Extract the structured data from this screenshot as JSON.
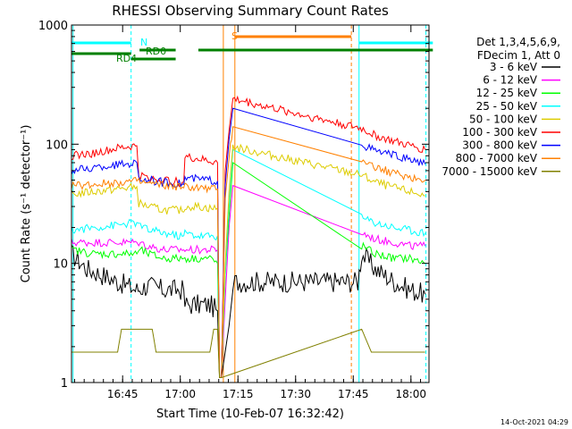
{
  "chart_data": {
    "type": "line",
    "title": "RHESSI Observing Summary Count Rates",
    "xlabel": "Start Time (10-Feb-07 16:32:42)",
    "ylabel": "Count Rate (s⁻¹ detector⁻¹)",
    "yscale": "log",
    "ylim": [
      1,
      1000
    ],
    "xlim_minutes": [
      0,
      93
    ],
    "x_ticks": [
      {
        "minutes": 13.3,
        "label": "16:45"
      },
      {
        "minutes": 28.3,
        "label": "17:00"
      },
      {
        "minutes": 43.3,
        "label": "17:15"
      },
      {
        "minutes": 58.3,
        "label": "17:30"
      },
      {
        "minutes": 73.3,
        "label": "17:45"
      },
      {
        "minutes": 88.3,
        "label": "18:00"
      }
    ],
    "y_ticks": [
      {
        "value": 1,
        "label": "1"
      },
      {
        "value": 10,
        "label": "10"
      },
      {
        "value": 100,
        "label": "100"
      },
      {
        "value": 1000,
        "label": "1000"
      }
    ],
    "legend_header": [
      "Det 1,3,4,5,6,9,",
      "FDecim 1, Att 0"
    ],
    "series": [
      {
        "name": "3 - 6 keV",
        "color": "#000000",
        "pts": [
          [
            0,
            12
          ],
          [
            4,
            9
          ],
          [
            8,
            8
          ],
          [
            12,
            7
          ],
          [
            17,
            6
          ],
          [
            20,
            6.5
          ],
          [
            24,
            6
          ],
          [
            28,
            6
          ],
          [
            29.2,
            6
          ],
          [
            29.5,
            4.5
          ],
          [
            32,
            4.5
          ],
          [
            36,
            4.5
          ],
          [
            38,
            4
          ],
          [
            38.5,
            1.1
          ],
          [
            39,
            1.1
          ],
          [
            41,
            3
          ],
          [
            42,
            6
          ],
          [
            42.5,
            7
          ],
          [
            53,
            7
          ],
          [
            74.5,
            7
          ],
          [
            75.5,
            12
          ],
          [
            79,
            9
          ],
          [
            84,
            7
          ],
          [
            88,
            6
          ],
          [
            92,
            5.5
          ]
        ]
      },
      {
        "name": "6 - 12 keV",
        "color": "#ff00ff",
        "pts": [
          [
            0,
            15
          ],
          [
            6,
            15
          ],
          [
            12,
            15
          ],
          [
            17,
            15
          ],
          [
            17.5,
            15
          ],
          [
            20,
            14
          ],
          [
            24,
            13
          ],
          [
            28,
            13
          ],
          [
            29.2,
            13
          ],
          [
            29.5,
            13
          ],
          [
            33,
            13
          ],
          [
            36,
            13
          ],
          [
            38,
            13
          ],
          [
            38.5,
            1.1
          ],
          [
            39,
            1.1
          ],
          [
            40,
            5
          ],
          [
            41,
            20
          ],
          [
            42,
            45
          ],
          [
            75.5,
            18
          ],
          [
            79,
            16
          ],
          [
            84,
            15
          ],
          [
            88,
            14
          ],
          [
            92,
            14
          ]
        ]
      },
      {
        "name": "12 - 25 keV",
        "color": "#00ff00",
        "pts": [
          [
            0,
            13
          ],
          [
            6,
            12
          ],
          [
            12,
            12
          ],
          [
            17,
            12
          ],
          [
            17.5,
            13
          ],
          [
            20,
            12
          ],
          [
            24,
            11
          ],
          [
            28,
            11
          ],
          [
            29.2,
            11
          ],
          [
            29.5,
            11
          ],
          [
            33,
            11
          ],
          [
            36,
            11
          ],
          [
            38,
            10
          ],
          [
            38.5,
            1.1
          ],
          [
            39,
            1.1
          ],
          [
            40,
            8
          ],
          [
            41,
            25
          ],
          [
            42,
            70
          ],
          [
            75.5,
            14
          ],
          [
            79,
            12
          ],
          [
            84,
            11
          ],
          [
            88,
            11
          ],
          [
            92,
            10
          ]
        ]
      },
      {
        "name": "25 - 50 keV",
        "color": "#00ffff",
        "pts": [
          [
            0,
            19
          ],
          [
            6,
            20
          ],
          [
            12,
            21
          ],
          [
            17,
            22
          ],
          [
            17.5,
            21
          ],
          [
            20,
            19
          ],
          [
            24,
            18
          ],
          [
            28,
            17
          ],
          [
            29.2,
            17
          ],
          [
            29.5,
            18
          ],
          [
            33,
            17
          ],
          [
            36,
            17
          ],
          [
            38,
            17
          ],
          [
            38.5,
            1.1
          ],
          [
            39,
            1.1
          ],
          [
            40,
            8
          ],
          [
            41,
            35
          ],
          [
            42,
            90
          ],
          [
            75.5,
            24
          ],
          [
            79,
            22
          ],
          [
            84,
            20
          ],
          [
            88,
            19
          ],
          [
            92,
            18
          ]
        ]
      },
      {
        "name": "50 - 100 keV",
        "color": "#ddcc00",
        "pts": [
          [
            0,
            38
          ],
          [
            6,
            40
          ],
          [
            12,
            42
          ],
          [
            17,
            44
          ],
          [
            17.5,
            32
          ],
          [
            20,
            30
          ],
          [
            24,
            28
          ],
          [
            28,
            28
          ],
          [
            29.2,
            27
          ],
          [
            29.5,
            30
          ],
          [
            33,
            30
          ],
          [
            36,
            29
          ],
          [
            38,
            29
          ],
          [
            38.5,
            1.1
          ],
          [
            39,
            1.1
          ],
          [
            40,
            10
          ],
          [
            41,
            40
          ],
          [
            42,
            95
          ],
          [
            75.5,
            55
          ],
          [
            79,
            48
          ],
          [
            84,
            43
          ],
          [
            88,
            40
          ],
          [
            92,
            37
          ]
        ]
      },
      {
        "name": "100 - 300 keV",
        "color": "#ff0000",
        "pts": [
          [
            0,
            80
          ],
          [
            6,
            84
          ],
          [
            12,
            92
          ],
          [
            17,
            97
          ],
          [
            17.5,
            55
          ],
          [
            20,
            52
          ],
          [
            24,
            50
          ],
          [
            28,
            48
          ],
          [
            29.2,
            48
          ],
          [
            29.5,
            78
          ],
          [
            33,
            75
          ],
          [
            36,
            72
          ],
          [
            38,
            70
          ],
          [
            38.5,
            1.1
          ],
          [
            39,
            1.1
          ],
          [
            40,
            60
          ],
          [
            41,
            130
          ],
          [
            42,
            240
          ],
          [
            75.5,
            135
          ],
          [
            79,
            118
          ],
          [
            84,
            105
          ],
          [
            88,
            97
          ],
          [
            92,
            90
          ]
        ]
      },
      {
        "name": "300 - 800 keV",
        "color": "#0000ff",
        "pts": [
          [
            0,
            60
          ],
          [
            6,
            63
          ],
          [
            12,
            67
          ],
          [
            17,
            70
          ],
          [
            17.5,
            52
          ],
          [
            20,
            50
          ],
          [
            24,
            48
          ],
          [
            28,
            47
          ],
          [
            29.2,
            46
          ],
          [
            29.5,
            52
          ],
          [
            33,
            51
          ],
          [
            36,
            50
          ],
          [
            38,
            49
          ],
          [
            38.5,
            1.1
          ],
          [
            39,
            1.1
          ],
          [
            40,
            45
          ],
          [
            41,
            110
          ],
          [
            42,
            200
          ],
          [
            75.5,
            100
          ],
          [
            79,
            88
          ],
          [
            84,
            80
          ],
          [
            88,
            74
          ],
          [
            92,
            68
          ]
        ]
      },
      {
        "name": "800 - 7000 keV",
        "color": "#ff8000",
        "pts": [
          [
            0,
            45
          ],
          [
            6,
            46
          ],
          [
            12,
            48
          ],
          [
            17,
            49
          ],
          [
            17.5,
            48
          ],
          [
            20,
            47
          ],
          [
            24,
            45
          ],
          [
            28,
            44
          ],
          [
            29.2,
            43
          ],
          [
            29.5,
            44
          ],
          [
            33,
            43
          ],
          [
            36,
            42
          ],
          [
            38,
            42
          ],
          [
            38.5,
            1.1
          ],
          [
            39,
            1.1
          ],
          [
            40,
            35
          ],
          [
            41,
            80
          ],
          [
            42,
            140
          ],
          [
            75.5,
            75
          ],
          [
            79,
            64
          ],
          [
            84,
            57
          ],
          [
            88,
            53
          ],
          [
            92,
            50
          ]
        ]
      },
      {
        "name": "7000 - 15000 keV",
        "color": "#808000",
        "pts": [
          [
            0,
            1.8
          ],
          [
            5,
            1.8
          ],
          [
            10,
            1.8
          ],
          [
            12,
            1.8
          ],
          [
            13,
            2.8
          ],
          [
            16,
            2.8
          ],
          [
            18,
            2.8
          ],
          [
            21,
            2.8
          ],
          [
            22,
            1.8
          ],
          [
            29.5,
            1.8
          ],
          [
            33,
            1.8
          ],
          [
            36,
            1.8
          ],
          [
            37,
            2.8
          ],
          [
            38,
            2.8
          ],
          [
            38.5,
            1.1
          ],
          [
            39,
            1.1
          ],
          [
            75.5,
            2.8
          ],
          [
            78,
            1.8
          ],
          [
            84,
            1.8
          ],
          [
            88,
            1.8
          ],
          [
            92,
            1.8
          ]
        ]
      }
    ],
    "bars": [
      {
        "label": "N",
        "color": "#00ffff",
        "segments": [
          [
            0,
            15.5
          ],
          [
            74.8,
            94
          ]
        ],
        "level": 1
      },
      {
        "label": "RD0",
        "color": "#008000",
        "segments": [
          [
            17.7,
            27.1
          ],
          [
            33,
            94
          ]
        ],
        "level": 2
      },
      {
        "label": "RD4",
        "color": "#008000",
        "segments": [
          [
            0,
            15.5
          ],
          [
            15.5,
            27.1
          ]
        ],
        "level": 3
      },
      {
        "label": "S",
        "color": "#ff8000",
        "segments": [
          [
            42.5,
            72.8
          ]
        ],
        "level": 0
      }
    ],
    "vlines": [
      {
        "x": 0.4,
        "color": "#00ffff",
        "dash": false
      },
      {
        "x": 15.5,
        "color": "#00ffff",
        "dash": true
      },
      {
        "x": 39.5,
        "color": "#ff8000",
        "dash": false
      },
      {
        "x": 42.5,
        "color": "#ff8000",
        "dash": false
      },
      {
        "x": 72.8,
        "color": "#ff8000",
        "dash": true
      },
      {
        "x": 74.8,
        "color": "#00ffff",
        "dash": false
      },
      {
        "x": 92.2,
        "color": "#00ffff",
        "dash": true
      }
    ]
  },
  "footer_date": "14-Oct-2021 04:29"
}
